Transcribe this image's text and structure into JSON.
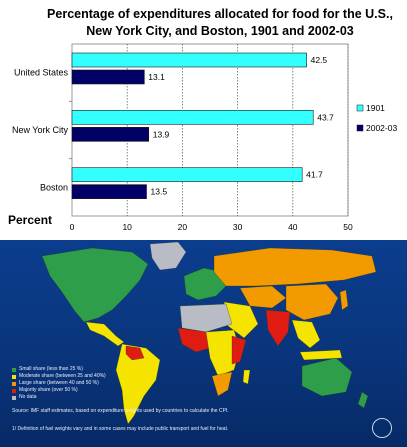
{
  "chart_data": {
    "type": "bar",
    "orientation": "horizontal",
    "title": "Percentage of expenditures allocated for food for the U.S., New York City, and Boston, 1901 and 2002-03",
    "xlabel": "Percent",
    "ylabel": "",
    "categories": [
      "United States",
      "New York City",
      "Boston"
    ],
    "series": [
      {
        "name": "1901",
        "color": "#33ffff",
        "values": [
          42.5,
          43.7,
          41.7
        ]
      },
      {
        "name": "2002-03",
        "color": "#000066",
        "values": [
          13.1,
          13.9,
          13.5
        ]
      }
    ],
    "xlim": [
      0,
      50
    ],
    "x_ticks": [
      0,
      10,
      20,
      30,
      40,
      50
    ],
    "grid": "vertical dotted",
    "legend": "right"
  },
  "map": {
    "legend": [
      {
        "label": "Small share (less than 25 %)",
        "color": "#2e9e4a"
      },
      {
        "label": "Moderate share (between 25 and 40%)",
        "color": "#f5e400"
      },
      {
        "label": "Large share (between 40 and 50 %)",
        "color": "#f39a00"
      },
      {
        "label": "Majority share (over 50 %)",
        "color": "#e01b12"
      },
      {
        "label": "No data",
        "color": "#b9bcc4"
      }
    ],
    "source": "Source: IMF staff estimates, based on expenditure weights used by countries to calculate the CPI.",
    "footnote": "1/ Definition of fuel weights vary and in some cases may include public transport and fuel for heat."
  }
}
